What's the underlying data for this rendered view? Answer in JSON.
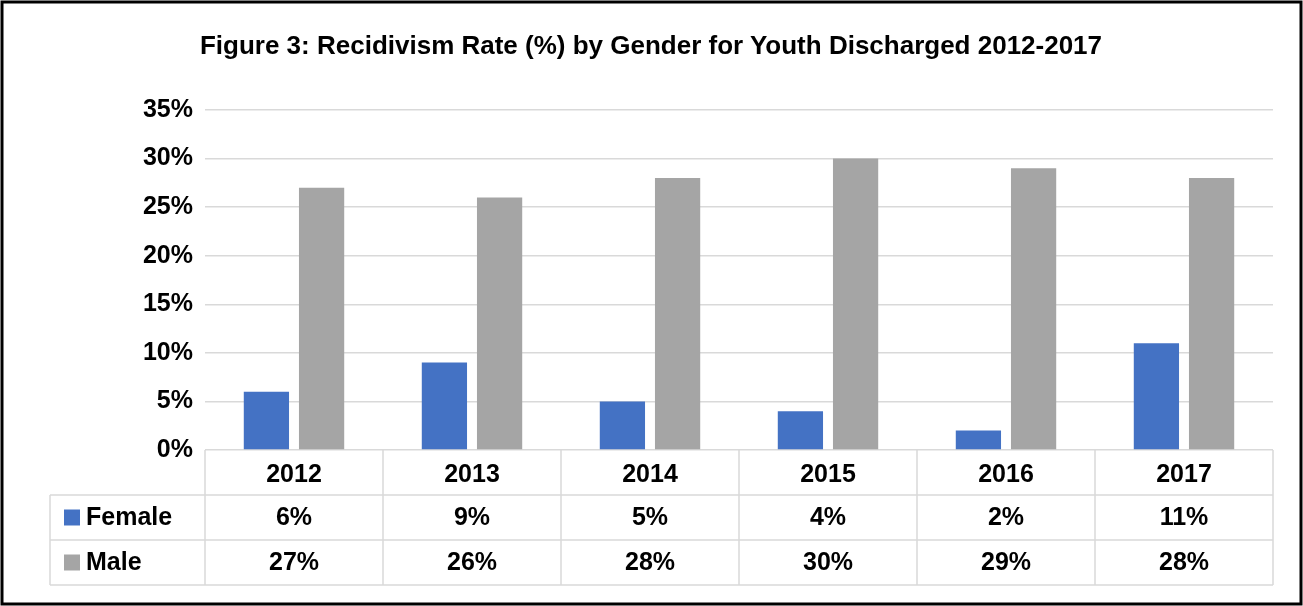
{
  "chart_data": {
    "type": "bar",
    "title": "Figure 3: Recidivism Rate (%) by Gender for Youth Discharged 2012-2017",
    "categories": [
      "2012",
      "2013",
      "2014",
      "2015",
      "2016",
      "2017"
    ],
    "series": [
      {
        "name": "Female",
        "color": "#4472c4",
        "values": [
          6,
          9,
          5,
          4,
          2,
          11
        ],
        "value_labels": [
          "6%",
          "9%",
          "5%",
          "4%",
          "2%",
          "11%"
        ]
      },
      {
        "name": "Male",
        "color": "#a5a5a5",
        "values": [
          27,
          26,
          28,
          30,
          29,
          28
        ],
        "value_labels": [
          "27%",
          "26%",
          "28%",
          "30%",
          "29%",
          "28%"
        ]
      }
    ],
    "ylim": [
      0,
      35
    ],
    "yticks": [
      {
        "value": 0,
        "label": "0%"
      },
      {
        "value": 5,
        "label": "5%"
      },
      {
        "value": 10,
        "label": "10%"
      },
      {
        "value": 15,
        "label": "15%"
      },
      {
        "value": 20,
        "label": "20%"
      },
      {
        "value": 25,
        "label": "25%"
      },
      {
        "value": 30,
        "label": "30%"
      },
      {
        "value": 35,
        "label": "35%"
      }
    ],
    "grid": "y",
    "legend": "bottom"
  }
}
